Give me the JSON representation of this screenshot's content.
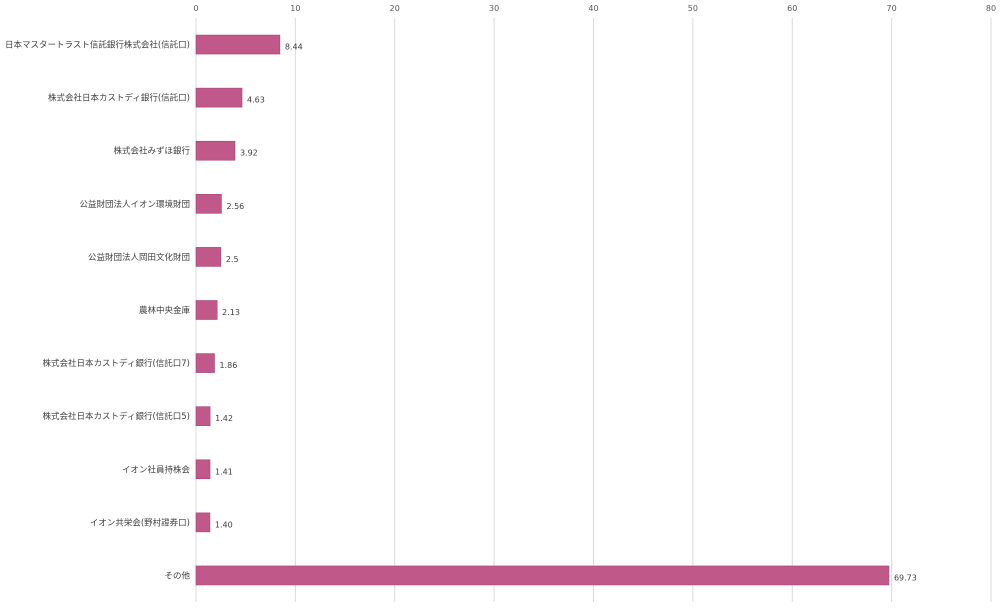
{
  "chart_data": {
    "type": "bar",
    "orientation": "horizontal",
    "categories": [
      "日本マスタートラスト信託銀行株式会社(信託口)",
      "株式会社日本カストディ銀行(信託口)",
      "株式会社みずほ銀行",
      "公益財団法人イオン環境財団",
      "公益財団法人岡田文化財団",
      "農林中央金庫",
      "株式会社日本カストディ銀行(信託口7)",
      "株式会社日本カストディ銀行(信託口5)",
      "イオン社員持株会",
      "イオン共栄会(野村證券口)",
      "その他"
    ],
    "values": [
      8.44,
      4.63,
      3.92,
      2.56,
      2.5,
      2.13,
      1.86,
      1.42,
      1.41,
      1.4,
      69.73
    ],
    "data_labels": [
      "8.44",
      "4.63",
      "3.92",
      "2.56",
      "2.5",
      "2.13",
      "1.86",
      "1.42",
      "1.41",
      "1.40",
      "69.73"
    ],
    "xlim": [
      0,
      80
    ],
    "x_ticks": [
      "0",
      "10",
      "20",
      "30",
      "40",
      "50",
      "60",
      "70",
      "80"
    ],
    "x_axis_position": "top",
    "grid": true,
    "legend": "none",
    "bar_color": "#c0588a",
    "title": "",
    "xlabel": "",
    "ylabel": ""
  }
}
